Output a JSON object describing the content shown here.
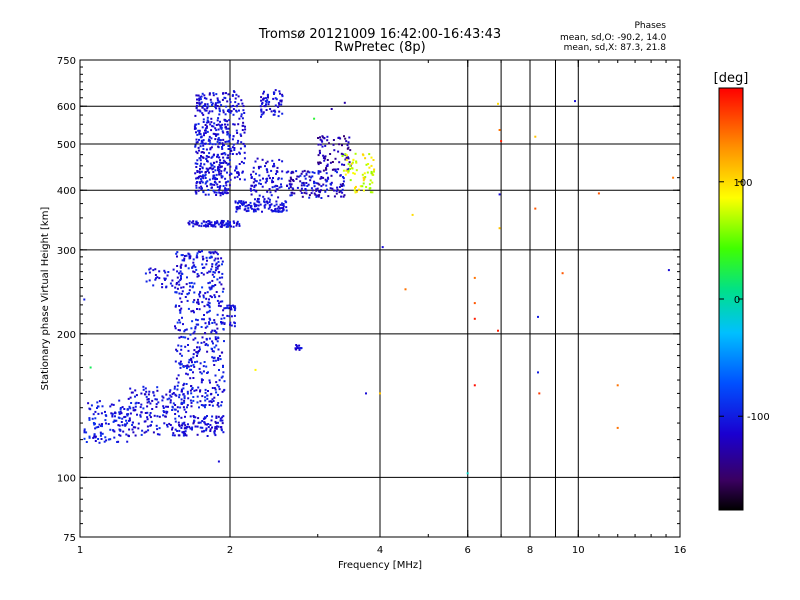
{
  "header": {
    "title": "Tromsø 20121009 16:42:00-16:43:43",
    "subtitle": "RwPretec (8p)"
  },
  "phases_box": {
    "heading": "Phases",
    "line_o": "mean, sd,O: -90.2, 14.0",
    "line_x": "mean, sd,X: 87.3, 21.8"
  },
  "colorbar": {
    "label": "[deg]",
    "ticks": [
      "100",
      "0",
      "-100"
    ],
    "tick_values": [
      100,
      0,
      -100
    ],
    "range": [
      -180,
      180
    ]
  },
  "chart_data": {
    "type": "scatter",
    "xlabel": "Frequency [MHz]",
    "ylabel": "Stationary phase Virtual Height [km]",
    "x_scale": "log",
    "y_scale": "log",
    "xlim": [
      1,
      16
    ],
    "ylim": [
      75,
      750
    ],
    "x_ticks": [
      1,
      2,
      4,
      6,
      8,
      10,
      16
    ],
    "x_tick_labels": [
      "1",
      "2",
      "4",
      "6",
      "8",
      "10",
      "16"
    ],
    "y_ticks": [
      75,
      100,
      200,
      300,
      400,
      500,
      600,
      750
    ],
    "y_tick_labels": [
      "75",
      "100",
      "200",
      "300",
      "400",
      "500",
      "600",
      "750"
    ],
    "grid_x": [
      2,
      4,
      6,
      7,
      8,
      9,
      10
    ],
    "grid_y": [
      100,
      200,
      300,
      400,
      500,
      600
    ],
    "color_by": "phase [deg]",
    "clusters": [
      {
        "freq": [
          1.02,
          1.25
        ],
        "height": [
          118,
          145
        ],
        "count": 120,
        "phase": [
          -120,
          -85
        ]
      },
      {
        "freq": [
          1.25,
          1.65
        ],
        "height": [
          122,
          155
        ],
        "count": 180,
        "phase": [
          -125,
          -90
        ]
      },
      {
        "freq": [
          1.6,
          1.95
        ],
        "height": [
          122,
          135
        ],
        "count": 90,
        "phase": [
          -125,
          -95
        ]
      },
      {
        "freq": [
          1.55,
          1.95
        ],
        "height": [
          140,
          300
        ],
        "count": 480,
        "phase": [
          -125,
          -85
        ]
      },
      {
        "freq": [
          1.35,
          1.55
        ],
        "height": [
          250,
          275
        ],
        "count": 30,
        "phase": [
          -120,
          -95
        ]
      },
      {
        "freq": [
          1.95,
          2.05
        ],
        "height": [
          205,
          230
        ],
        "count": 25,
        "phase": [
          -115,
          -95
        ]
      },
      {
        "freq": [
          1.65,
          2.1
        ],
        "height": [
          335,
          345
        ],
        "count": 90,
        "phase": [
          -120,
          -95
        ]
      },
      {
        "freq": [
          1.7,
          2.0
        ],
        "height": [
          390,
          640
        ],
        "count": 420,
        "phase": [
          -125,
          -90
        ]
      },
      {
        "freq": [
          2.0,
          2.15
        ],
        "height": [
          420,
          650
        ],
        "count": 90,
        "phase": [
          -125,
          -95
        ]
      },
      {
        "freq": [
          2.05,
          2.6
        ],
        "height": [
          360,
          380
        ],
        "count": 110,
        "phase": [
          -120,
          -95
        ]
      },
      {
        "freq": [
          2.2,
          2.55
        ],
        "height": [
          380,
          470
        ],
        "count": 90,
        "phase": [
          -125,
          -95
        ]
      },
      {
        "freq": [
          2.3,
          2.55
        ],
        "height": [
          570,
          650
        ],
        "count": 60,
        "phase": [
          -125,
          -95
        ]
      },
      {
        "freq": [
          2.6,
          3.4
        ],
        "height": [
          385,
          440
        ],
        "count": 150,
        "phase": [
          -140,
          -90
        ]
      },
      {
        "freq": [
          3.0,
          3.5
        ],
        "height": [
          440,
          520
        ],
        "count": 80,
        "phase": [
          -150,
          -110
        ]
      },
      {
        "freq": [
          3.35,
          3.9
        ],
        "height": [
          395,
          480
        ],
        "count": 70,
        "phase": [
          60,
          105
        ]
      },
      {
        "freq": [
          2.7,
          2.8
        ],
        "height": [
          185,
          190
        ],
        "count": 15,
        "phase": [
          -120,
          -100
        ]
      }
    ],
    "points": [
      {
        "freq": 1.02,
        "height": 236,
        "phase": -100
      },
      {
        "freq": 1.05,
        "height": 170,
        "phase": 20
      },
      {
        "freq": 1.9,
        "height": 108,
        "phase": -110
      },
      {
        "freq": 2.25,
        "height": 168,
        "phase": 90
      },
      {
        "freq": 3.4,
        "height": 610,
        "phase": -130
      },
      {
        "freq": 3.2,
        "height": 592,
        "phase": -130
      },
      {
        "freq": 2.95,
        "height": 565,
        "phase": 30
      },
      {
        "freq": 4.05,
        "height": 304,
        "phase": -110
      },
      {
        "freq": 3.75,
        "height": 150,
        "phase": -110
      },
      {
        "freq": 4.0,
        "height": 150,
        "phase": 110
      },
      {
        "freq": 4.5,
        "height": 248,
        "phase": 140
      },
      {
        "freq": 4.65,
        "height": 355,
        "phase": 100
      },
      {
        "freq": 6.0,
        "height": 102,
        "phase": -10
      },
      {
        "freq": 6.2,
        "height": 262,
        "phase": 140
      },
      {
        "freq": 6.2,
        "height": 232,
        "phase": 150
      },
      {
        "freq": 6.2,
        "height": 215,
        "phase": 170
      },
      {
        "freq": 6.2,
        "height": 156,
        "phase": 175
      },
      {
        "freq": 6.95,
        "height": 535,
        "phase": 140
      },
      {
        "freq": 7.0,
        "height": 507,
        "phase": 170
      },
      {
        "freq": 6.9,
        "height": 607,
        "phase": 100
      },
      {
        "freq": 6.95,
        "height": 392,
        "phase": -110
      },
      {
        "freq": 6.95,
        "height": 333,
        "phase": 110
      },
      {
        "freq": 6.9,
        "height": 203,
        "phase": 170
      },
      {
        "freq": 8.2,
        "height": 518,
        "phase": 110
      },
      {
        "freq": 8.2,
        "height": 366,
        "phase": 150
      },
      {
        "freq": 8.3,
        "height": 217,
        "phase": -100
      },
      {
        "freq": 8.3,
        "height": 166,
        "phase": -100
      },
      {
        "freq": 8.35,
        "height": 150,
        "phase": 160
      },
      {
        "freq": 9.3,
        "height": 268,
        "phase": 150
      },
      {
        "freq": 9.85,
        "height": 615,
        "phase": -110
      },
      {
        "freq": 11.0,
        "height": 394,
        "phase": 150
      },
      {
        "freq": 12.0,
        "height": 156,
        "phase": 140
      },
      {
        "freq": 12.0,
        "height": 127,
        "phase": 140
      },
      {
        "freq": 15.2,
        "height": 272,
        "phase": -110
      },
      {
        "freq": 15.5,
        "height": 425,
        "phase": 140
      }
    ]
  },
  "colors": {
    "background": "#ffffff",
    "axes": "#000000",
    "grid": "#000000"
  }
}
